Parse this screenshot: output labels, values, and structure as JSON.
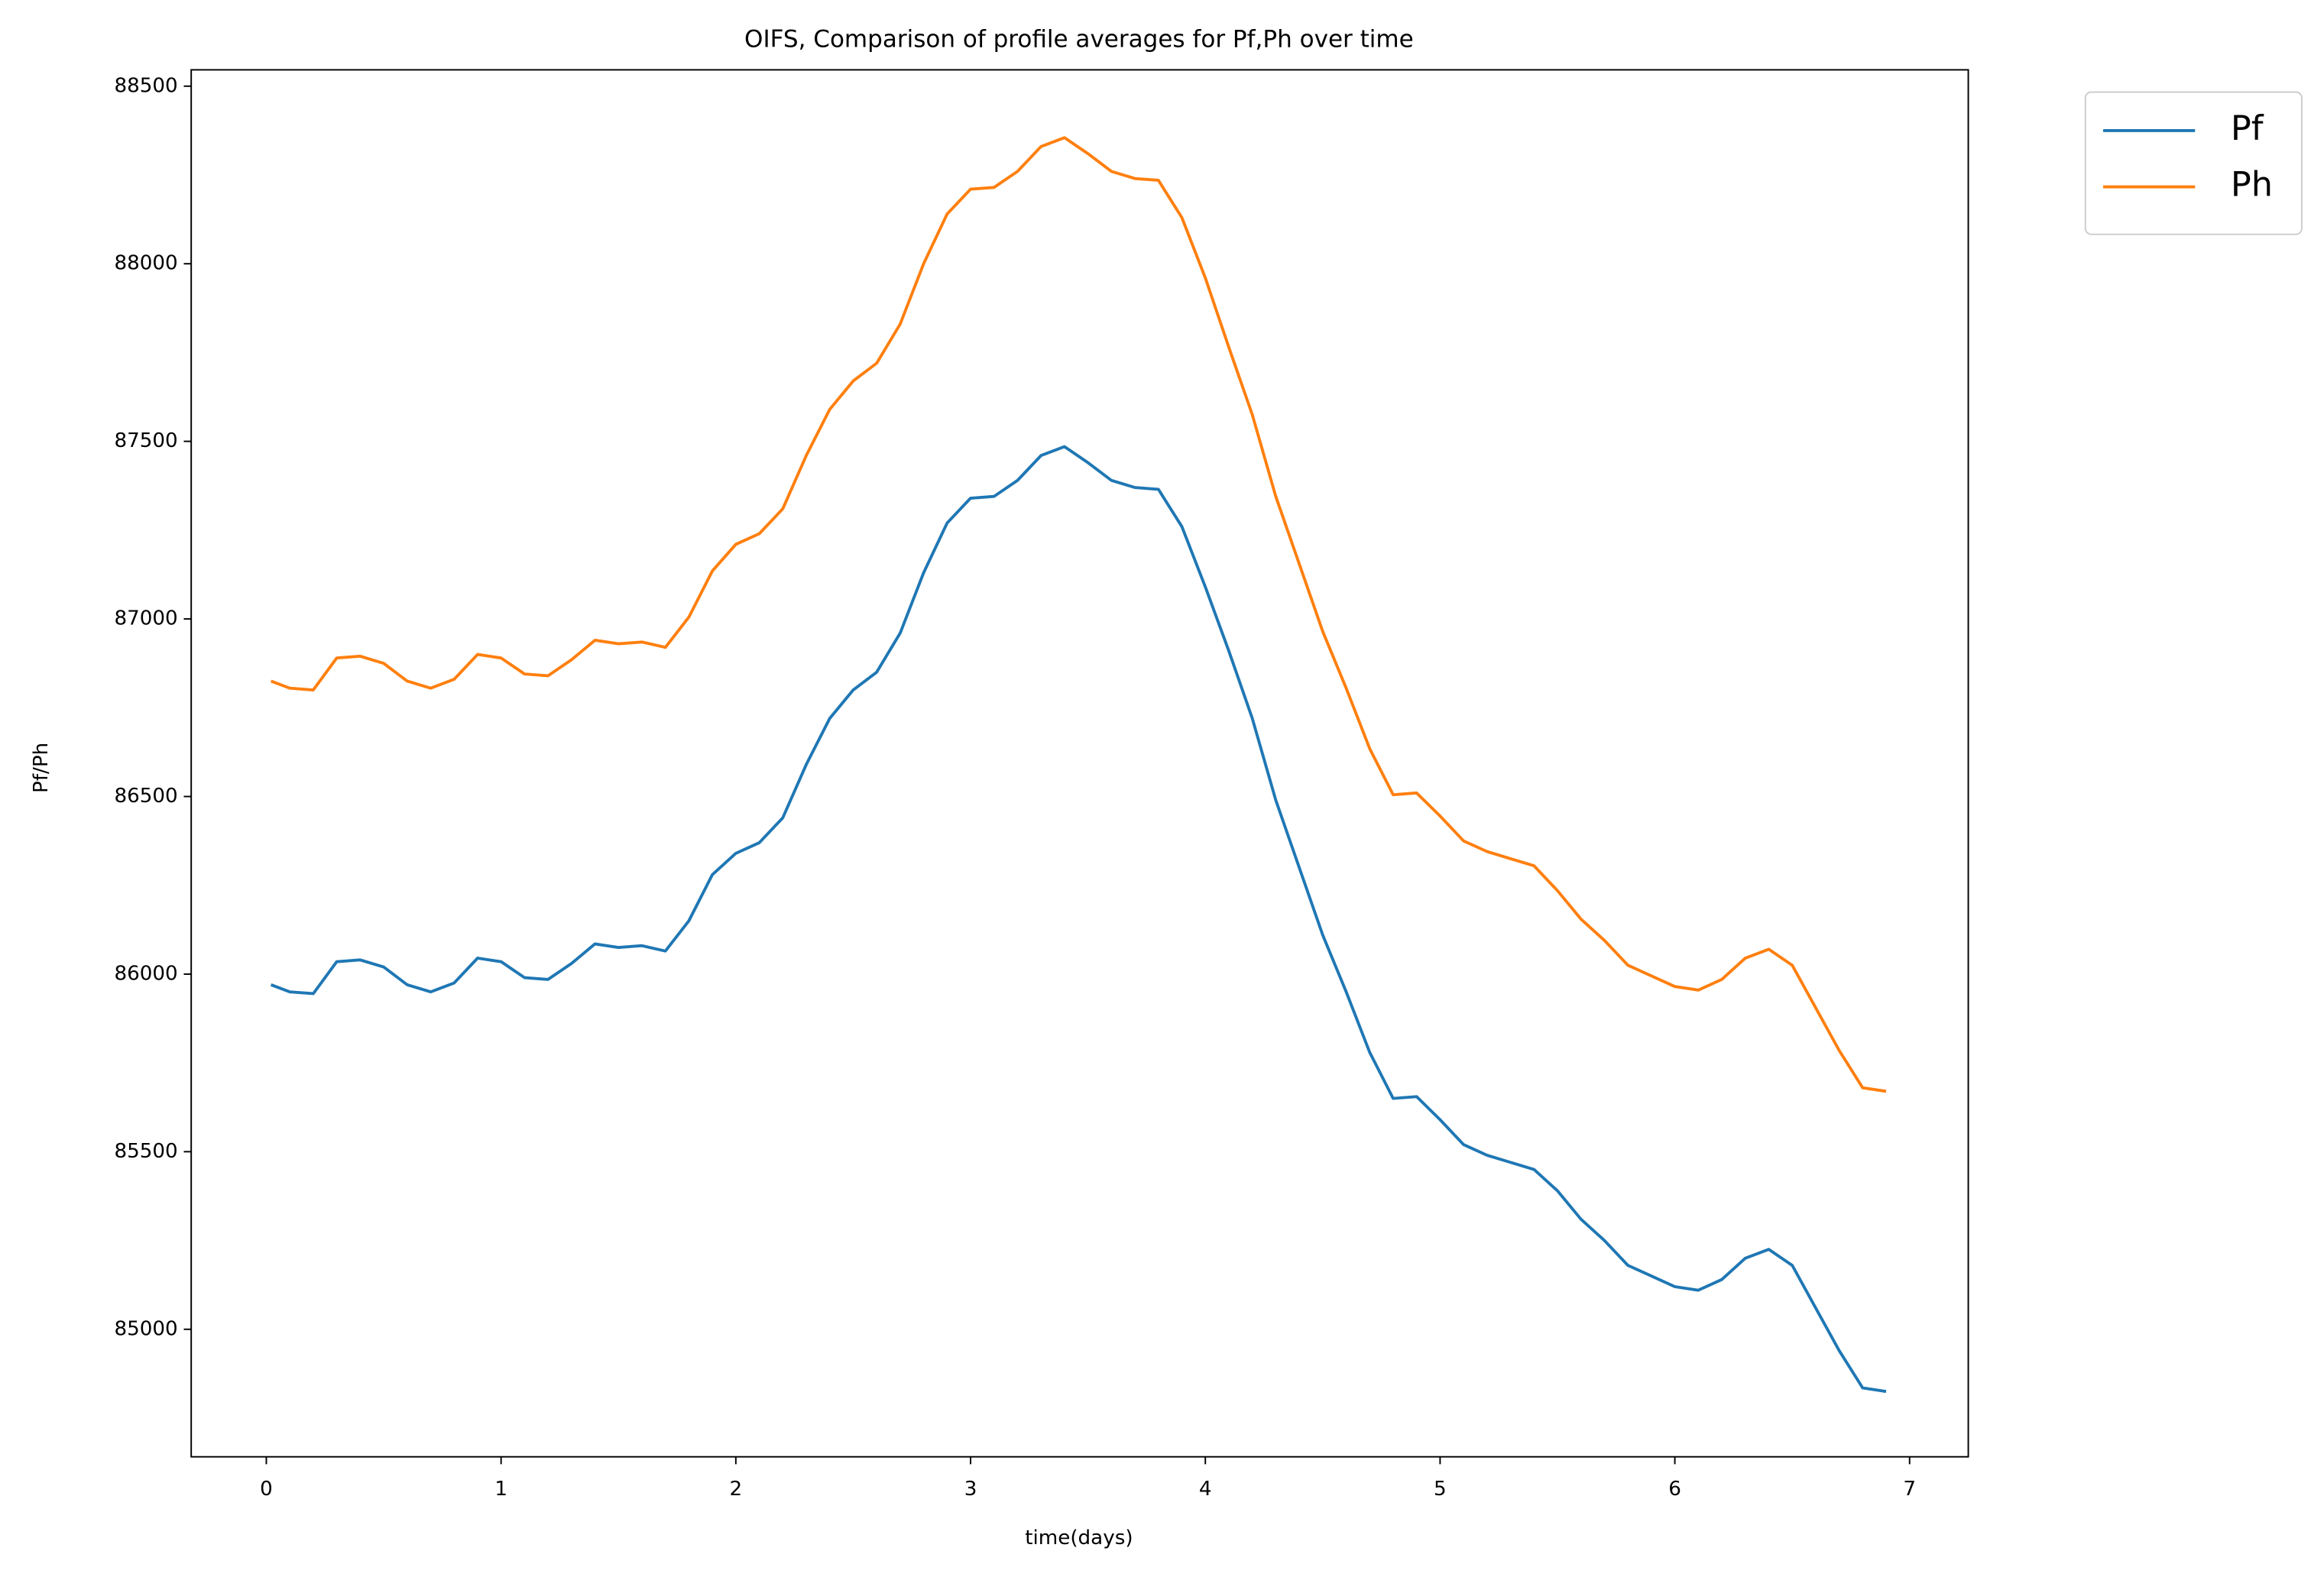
{
  "chart_data": {
    "type": "line",
    "title": "OIFS, Comparison of profile averages for Pf,Ph over time",
    "xlabel": "time(days)",
    "ylabel": "Pf/Ph",
    "x": [
      0.02,
      0.1,
      0.2,
      0.3,
      0.4,
      0.5,
      0.6,
      0.7,
      0.8,
      0.9,
      1.0,
      1.1,
      1.2,
      1.3,
      1.4,
      1.5,
      1.6,
      1.7,
      1.8,
      1.9,
      2.0,
      2.1,
      2.2,
      2.3,
      2.4,
      2.5,
      2.6,
      2.7,
      2.8,
      2.9,
      3.0,
      3.1,
      3.2,
      3.3,
      3.4,
      3.5,
      3.6,
      3.7,
      3.8,
      3.9,
      4.0,
      4.1,
      4.2,
      4.3,
      4.4,
      4.5,
      4.6,
      4.7,
      4.8,
      4.9,
      5.0,
      5.1,
      5.2,
      5.3,
      5.4,
      5.5,
      5.6,
      5.7,
      5.8,
      5.9,
      6.0,
      6.1,
      6.2,
      6.3,
      6.4,
      6.5,
      6.6,
      6.7,
      6.8,
      6.9
    ],
    "series": [
      {
        "name": "Pf",
        "color": "#1f77b4",
        "values": [
          85970,
          85950,
          85945,
          86035,
          86040,
          86020,
          85970,
          85950,
          85975,
          86045,
          86035,
          85990,
          85985,
          86030,
          86085,
          86075,
          86080,
          86065,
          86150,
          86280,
          86340,
          86370,
          86440,
          86590,
          86720,
          86800,
          86850,
          86960,
          87130,
          87270,
          87340,
          87345,
          87390,
          87460,
          87485,
          87440,
          87390,
          87370,
          87365,
          87260,
          87090,
          86910,
          86720,
          86490,
          86300,
          86110,
          85950,
          85780,
          85650,
          85655,
          85590,
          85520,
          85490,
          85470,
          85450,
          85390,
          85310,
          85250,
          85180,
          85150,
          85120,
          85110,
          85140,
          85200,
          85225,
          85180,
          85060,
          84940,
          84835,
          84825
        ]
      },
      {
        "name": "Ph",
        "color": "#ff7f0e",
        "values": [
          86825,
          86805,
          86800,
          86890,
          86895,
          86875,
          86825,
          86805,
          86830,
          86900,
          86890,
          86845,
          86840,
          86885,
          86940,
          86930,
          86935,
          86920,
          87005,
          87135,
          87210,
          87240,
          87310,
          87460,
          87590,
          87670,
          87720,
          87830,
          88000,
          88140,
          88210,
          88215,
          88260,
          88330,
          88355,
          88310,
          88260,
          88240,
          88235,
          88130,
          87960,
          87765,
          87575,
          87345,
          87155,
          86965,
          86805,
          86635,
          86505,
          86510,
          86445,
          86375,
          86345,
          86325,
          86305,
          86235,
          86155,
          86095,
          86025,
          85995,
          85965,
          85955,
          85985,
          86045,
          86070,
          86025,
          85905,
          85785,
          85680,
          85670
        ]
      }
    ],
    "xlim": [
      -0.32,
      7.25
    ],
    "xticks": [
      0,
      1,
      2,
      3,
      4,
      5,
      6,
      7
    ],
    "ylim": [
      84641,
      88546
    ],
    "yticks": [
      85000,
      85500,
      86000,
      86500,
      87000,
      87500,
      88000,
      88500
    ],
    "grid": false,
    "legend": "upper right outside"
  }
}
